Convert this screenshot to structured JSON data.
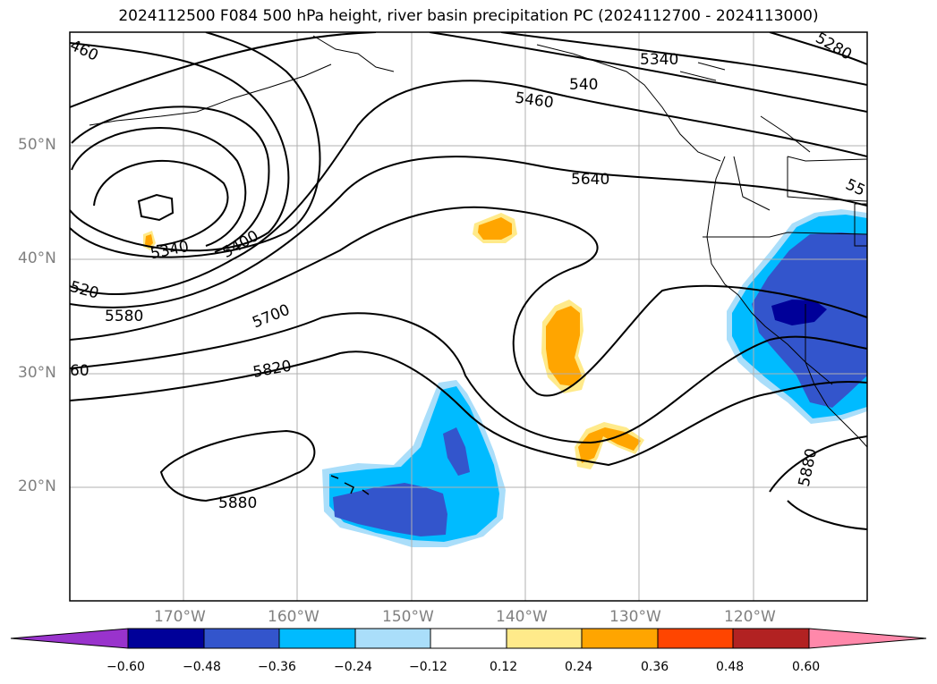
{
  "title": "2024112500 F084 500 hPa height, river basin precipitation PC (2024112700 - 2024113000)",
  "lat_labels": [
    "50°N",
    "40°N",
    "30°N",
    "20°N"
  ],
  "lon_labels": [
    "170°W",
    "160°W",
    "150°W",
    "140°W",
    "130°W",
    "120°W"
  ],
  "contour_labels": [
    "460",
    "5340",
    "5400",
    "520",
    "5580",
    "5700",
    "60",
    "5820",
    "5880",
    "5460",
    "540",
    "5340",
    "5280",
    "5640",
    "55",
    "5880"
  ],
  "colorbar": {
    "ticks": [
      "−0.60",
      "−0.48",
      "−0.36",
      "−0.24",
      "−0.12",
      "0.12",
      "0.24",
      "0.36",
      "0.48",
      "0.60"
    ],
    "colors": [
      "#9933cc",
      "#000099",
      "#3355cc",
      "#00bbff",
      "#aadefa",
      "#ffffff",
      "#ffea8a",
      "#ffa500",
      "#ff4500",
      "#b22222",
      "#ff88aa"
    ]
  },
  "colors": {
    "grid": "#b0b0b0",
    "contour": "#000000",
    "frame": "#000000"
  }
}
